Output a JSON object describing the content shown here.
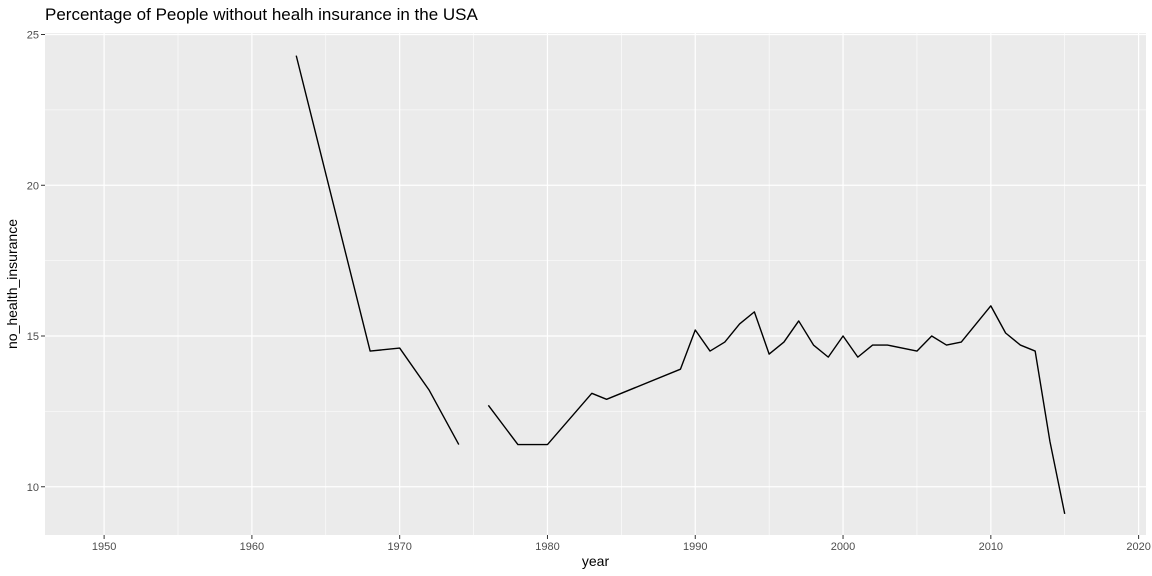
{
  "chart_data": {
    "type": "line",
    "title": "Percentage of People without healh insurance in the USA",
    "xlabel": "year",
    "ylabel": "no_health_insurance",
    "xlim": [
      1946,
      2020.5
    ],
    "ylim": [
      8.4,
      25.05
    ],
    "x_ticks": [
      1950,
      1960,
      1970,
      1980,
      1990,
      2000,
      2010,
      2020
    ],
    "x_tick_labels": [
      "1950",
      "1960",
      "1970",
      "1980",
      "1990",
      "2000",
      "2010",
      "2020"
    ],
    "y_ticks": [
      10,
      15,
      20,
      25
    ],
    "y_tick_labels": [
      "10",
      "15",
      "20",
      "25"
    ],
    "x_minor_ticks": [
      1945,
      1955,
      1965,
      1975,
      1985,
      1995,
      2005,
      2015
    ],
    "y_minor_ticks": [
      12.5,
      17.5,
      22.5
    ],
    "grid": true,
    "legend": "none",
    "colors": {
      "panel": "#ebebeb",
      "grid": "#ffffff",
      "line": "#000000",
      "tick_text": "#4d4d4d",
      "tick_mark": "#333333"
    },
    "series": [
      {
        "segments": [
          {
            "x": [
              1963,
              1968,
              1970,
              1972,
              1974
            ],
            "y": [
              24.3,
              14.5,
              14.6,
              13.2,
              11.4
            ]
          },
          {
            "x": [
              1976,
              1978,
              1980,
              1983,
              1984,
              1989,
              1990,
              1991,
              1992,
              1993,
              1994,
              1995,
              1996,
              1997,
              1998,
              1999,
              2000,
              2001,
              2002,
              2003,
              2005,
              2006,
              2007,
              2008,
              2010,
              2011,
              2012,
              2013,
              2014,
              2015
            ],
            "y": [
              12.7,
              11.4,
              11.4,
              13.1,
              12.9,
              13.9,
              15.2,
              14.5,
              14.8,
              15.4,
              15.8,
              14.4,
              14.8,
              15.5,
              14.7,
              14.3,
              15.0,
              14.3,
              14.7,
              14.7,
              14.5,
              15.0,
              14.7,
              14.8,
              16.0,
              15.1,
              14.7,
              14.5,
              11.5,
              9.1
            ]
          }
        ]
      }
    ]
  }
}
